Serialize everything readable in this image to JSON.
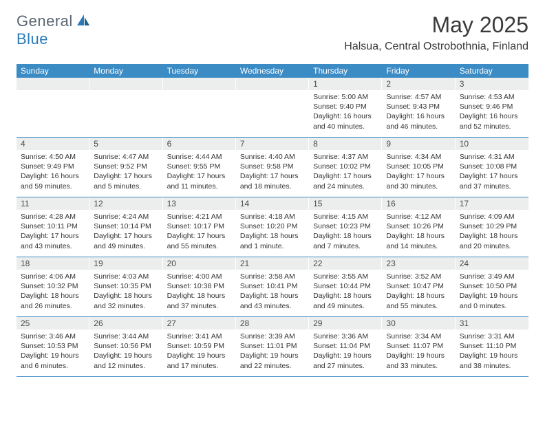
{
  "logo": {
    "text1": "General",
    "text2": "Blue"
  },
  "title": "May 2025",
  "location": "Halsua, Central Ostrobothnia, Finland",
  "colors": {
    "header_bg": "#3b8bc4",
    "header_text": "#ffffff",
    "daynum_bg": "#eceded",
    "text": "#333333",
    "logo_gray": "#5a6570",
    "logo_blue": "#2a7ab8"
  },
  "dayNames": [
    "Sunday",
    "Monday",
    "Tuesday",
    "Wednesday",
    "Thursday",
    "Friday",
    "Saturday"
  ],
  "weeks": [
    [
      null,
      null,
      null,
      null,
      {
        "n": "1",
        "sr": "5:00 AM",
        "ss": "9:40 PM",
        "dl": "Daylight: 16 hours and 40 minutes."
      },
      {
        "n": "2",
        "sr": "4:57 AM",
        "ss": "9:43 PM",
        "dl": "Daylight: 16 hours and 46 minutes."
      },
      {
        "n": "3",
        "sr": "4:53 AM",
        "ss": "9:46 PM",
        "dl": "Daylight: 16 hours and 52 minutes."
      }
    ],
    [
      {
        "n": "4",
        "sr": "4:50 AM",
        "ss": "9:49 PM",
        "dl": "Daylight: 16 hours and 59 minutes."
      },
      {
        "n": "5",
        "sr": "4:47 AM",
        "ss": "9:52 PM",
        "dl": "Daylight: 17 hours and 5 minutes."
      },
      {
        "n": "6",
        "sr": "4:44 AM",
        "ss": "9:55 PM",
        "dl": "Daylight: 17 hours and 11 minutes."
      },
      {
        "n": "7",
        "sr": "4:40 AM",
        "ss": "9:58 PM",
        "dl": "Daylight: 17 hours and 18 minutes."
      },
      {
        "n": "8",
        "sr": "4:37 AM",
        "ss": "10:02 PM",
        "dl": "Daylight: 17 hours and 24 minutes."
      },
      {
        "n": "9",
        "sr": "4:34 AM",
        "ss": "10:05 PM",
        "dl": "Daylight: 17 hours and 30 minutes."
      },
      {
        "n": "10",
        "sr": "4:31 AM",
        "ss": "10:08 PM",
        "dl": "Daylight: 17 hours and 37 minutes."
      }
    ],
    [
      {
        "n": "11",
        "sr": "4:28 AM",
        "ss": "10:11 PM",
        "dl": "Daylight: 17 hours and 43 minutes."
      },
      {
        "n": "12",
        "sr": "4:24 AM",
        "ss": "10:14 PM",
        "dl": "Daylight: 17 hours and 49 minutes."
      },
      {
        "n": "13",
        "sr": "4:21 AM",
        "ss": "10:17 PM",
        "dl": "Daylight: 17 hours and 55 minutes."
      },
      {
        "n": "14",
        "sr": "4:18 AM",
        "ss": "10:20 PM",
        "dl": "Daylight: 18 hours and 1 minute."
      },
      {
        "n": "15",
        "sr": "4:15 AM",
        "ss": "10:23 PM",
        "dl": "Daylight: 18 hours and 7 minutes."
      },
      {
        "n": "16",
        "sr": "4:12 AM",
        "ss": "10:26 PM",
        "dl": "Daylight: 18 hours and 14 minutes."
      },
      {
        "n": "17",
        "sr": "4:09 AM",
        "ss": "10:29 PM",
        "dl": "Daylight: 18 hours and 20 minutes."
      }
    ],
    [
      {
        "n": "18",
        "sr": "4:06 AM",
        "ss": "10:32 PM",
        "dl": "Daylight: 18 hours and 26 minutes."
      },
      {
        "n": "19",
        "sr": "4:03 AM",
        "ss": "10:35 PM",
        "dl": "Daylight: 18 hours and 32 minutes."
      },
      {
        "n": "20",
        "sr": "4:00 AM",
        "ss": "10:38 PM",
        "dl": "Daylight: 18 hours and 37 minutes."
      },
      {
        "n": "21",
        "sr": "3:58 AM",
        "ss": "10:41 PM",
        "dl": "Daylight: 18 hours and 43 minutes."
      },
      {
        "n": "22",
        "sr": "3:55 AM",
        "ss": "10:44 PM",
        "dl": "Daylight: 18 hours and 49 minutes."
      },
      {
        "n": "23",
        "sr": "3:52 AM",
        "ss": "10:47 PM",
        "dl": "Daylight: 18 hours and 55 minutes."
      },
      {
        "n": "24",
        "sr": "3:49 AM",
        "ss": "10:50 PM",
        "dl": "Daylight: 19 hours and 0 minutes."
      }
    ],
    [
      {
        "n": "25",
        "sr": "3:46 AM",
        "ss": "10:53 PM",
        "dl": "Daylight: 19 hours and 6 minutes."
      },
      {
        "n": "26",
        "sr": "3:44 AM",
        "ss": "10:56 PM",
        "dl": "Daylight: 19 hours and 12 minutes."
      },
      {
        "n": "27",
        "sr": "3:41 AM",
        "ss": "10:59 PM",
        "dl": "Daylight: 19 hours and 17 minutes."
      },
      {
        "n": "28",
        "sr": "3:39 AM",
        "ss": "11:01 PM",
        "dl": "Daylight: 19 hours and 22 minutes."
      },
      {
        "n": "29",
        "sr": "3:36 AM",
        "ss": "11:04 PM",
        "dl": "Daylight: 19 hours and 27 minutes."
      },
      {
        "n": "30",
        "sr": "3:34 AM",
        "ss": "11:07 PM",
        "dl": "Daylight: 19 hours and 33 minutes."
      },
      {
        "n": "31",
        "sr": "3:31 AM",
        "ss": "11:10 PM",
        "dl": "Daylight: 19 hours and 38 minutes."
      }
    ]
  ],
  "labels": {
    "sunrise": "Sunrise:",
    "sunset": "Sunset:"
  }
}
